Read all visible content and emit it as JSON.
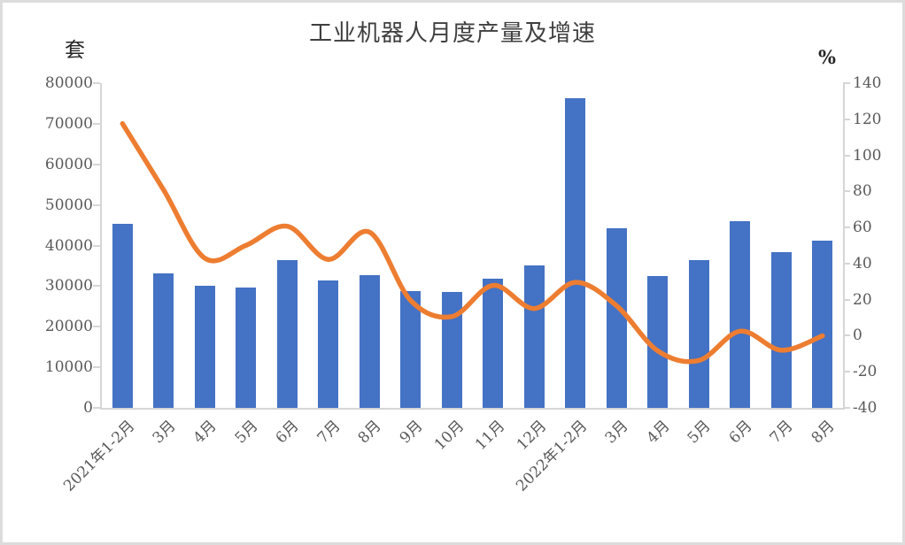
{
  "chart_data": {
    "type": "combo",
    "title": "工业机器人月度产量及增速",
    "categories": [
      "2021年1-2月",
      "3月",
      "4月",
      "5月",
      "6月",
      "7月",
      "8月",
      "9月",
      "10月",
      "11月",
      "12月",
      "2022年1-2月",
      "3月",
      "4月",
      "5月",
      "6月",
      "7月",
      "8月"
    ],
    "series": [
      {
        "name": "产量",
        "type": "bar",
        "axis": "left",
        "color": "#4472C4",
        "values": [
          45400,
          33100,
          30200,
          29700,
          36400,
          31300,
          32800,
          28800,
          28500,
          31900,
          35200,
          76400,
          44300,
          32500,
          36500,
          46100,
          38300,
          41300
        ]
      },
      {
        "name": "增速",
        "type": "line",
        "axis": "right",
        "color": "#ED7D31",
        "values": [
          117.6,
          80.8,
          43.0,
          50.1,
          60.7,
          42.3,
          57.4,
          19.5,
          10.6,
          27.9,
          15.1,
          29.6,
          16.6,
          -8.4,
          -13.7,
          2.5,
          -8.0,
          -0.1
        ]
      }
    ],
    "left_axis": {
      "label": "套",
      "min": 0,
      "max": 80000,
      "tick_step": 10000,
      "ticks": [
        "80000",
        "70000",
        "60000",
        "50000",
        "40000",
        "30000",
        "20000",
        "10000",
        "0"
      ]
    },
    "right_axis": {
      "label": "%",
      "min": -40,
      "max": 140,
      "tick_step": 20,
      "ticks": [
        "140",
        "120",
        "100",
        "80",
        "60",
        "40",
        "20",
        "0",
        "-20",
        "-40"
      ]
    },
    "grid": false,
    "legend": "none"
  }
}
